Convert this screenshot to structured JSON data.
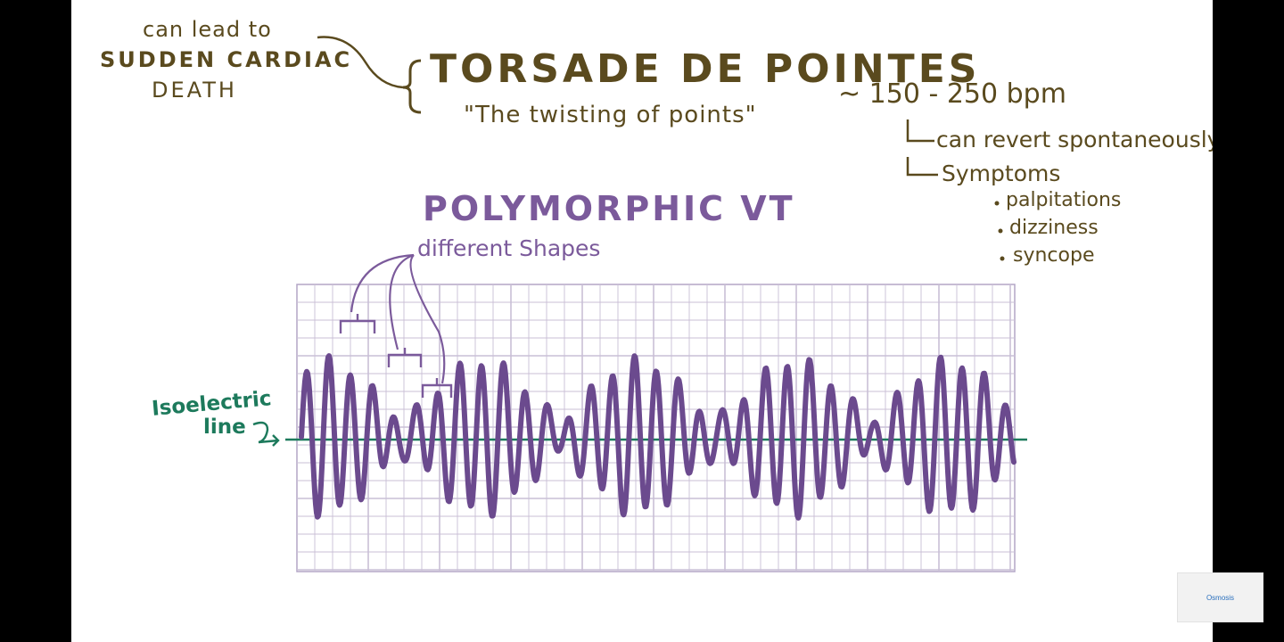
{
  "death_note": {
    "line1": "can lead to",
    "line2": "SUDDEN CARDIAC",
    "line3": "DEATH"
  },
  "title": "TORSADE DE POINTES",
  "subtitle": "\"The twisting of points\"",
  "rate": "~ 150 - 250 bpm",
  "revert": "can revert spontaneously",
  "symptoms_heading": "Symptoms",
  "symptoms": [
    "palpitations",
    "dizziness",
    "syncope"
  ],
  "poly_heading": "POLYMORPHIC VT",
  "shapes_label": "different Shapes",
  "isoelectric": {
    "line1": "Isoelectric",
    "line2": "line"
  },
  "logo_text": "Osmosis",
  "colors": {
    "ink": "#5a4a1e",
    "purple": "#7b5a9b",
    "grid": "#bfb4cf",
    "isoelectric": "#1d7a5c"
  }
}
